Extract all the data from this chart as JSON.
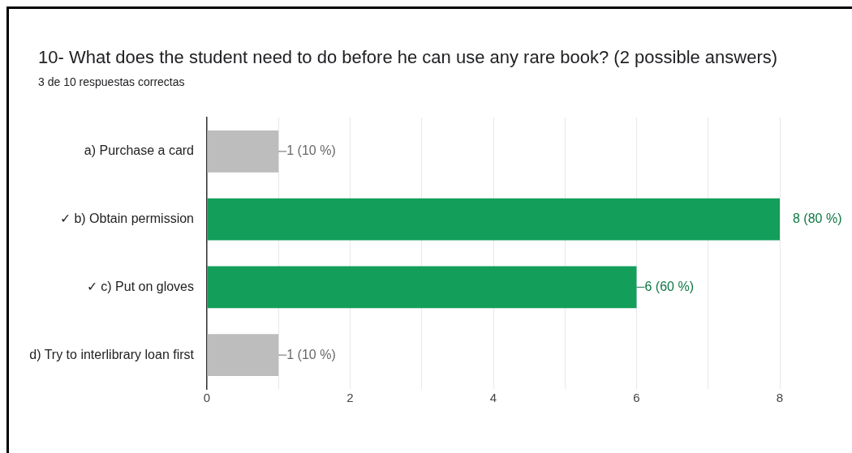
{
  "chart_data": {
    "type": "bar",
    "orientation": "horizontal",
    "title": "10- What does the student need to do before he can use any rare book? (2 possible answers)",
    "subtitle": "3 de 10 respuestas correctas",
    "categories": [
      "a) Purchase a card",
      "✓ b) Obtain permission",
      "✓ c) Put on gloves",
      "d) Try to interlibrary loan first"
    ],
    "values": [
      1,
      8,
      6,
      1
    ],
    "colors": [
      "#bdbdbd",
      "#139e5a",
      "#139e5a",
      "#bdbdbd"
    ],
    "value_labels": [
      "1 (10 %)",
      "8 (80 %)",
      "6 (60 %)",
      "1 (10 %)"
    ],
    "xlim": [
      0,
      8
    ],
    "xticks": [
      0,
      {
        "value": 1,
        "label": null
      },
      2,
      {
        "value": 3,
        "label": null
      },
      4,
      {
        "value": 5,
        "label": null
      },
      6,
      {
        "value": 7,
        "label": null
      },
      8
    ],
    "grid": "x",
    "legend": false
  }
}
